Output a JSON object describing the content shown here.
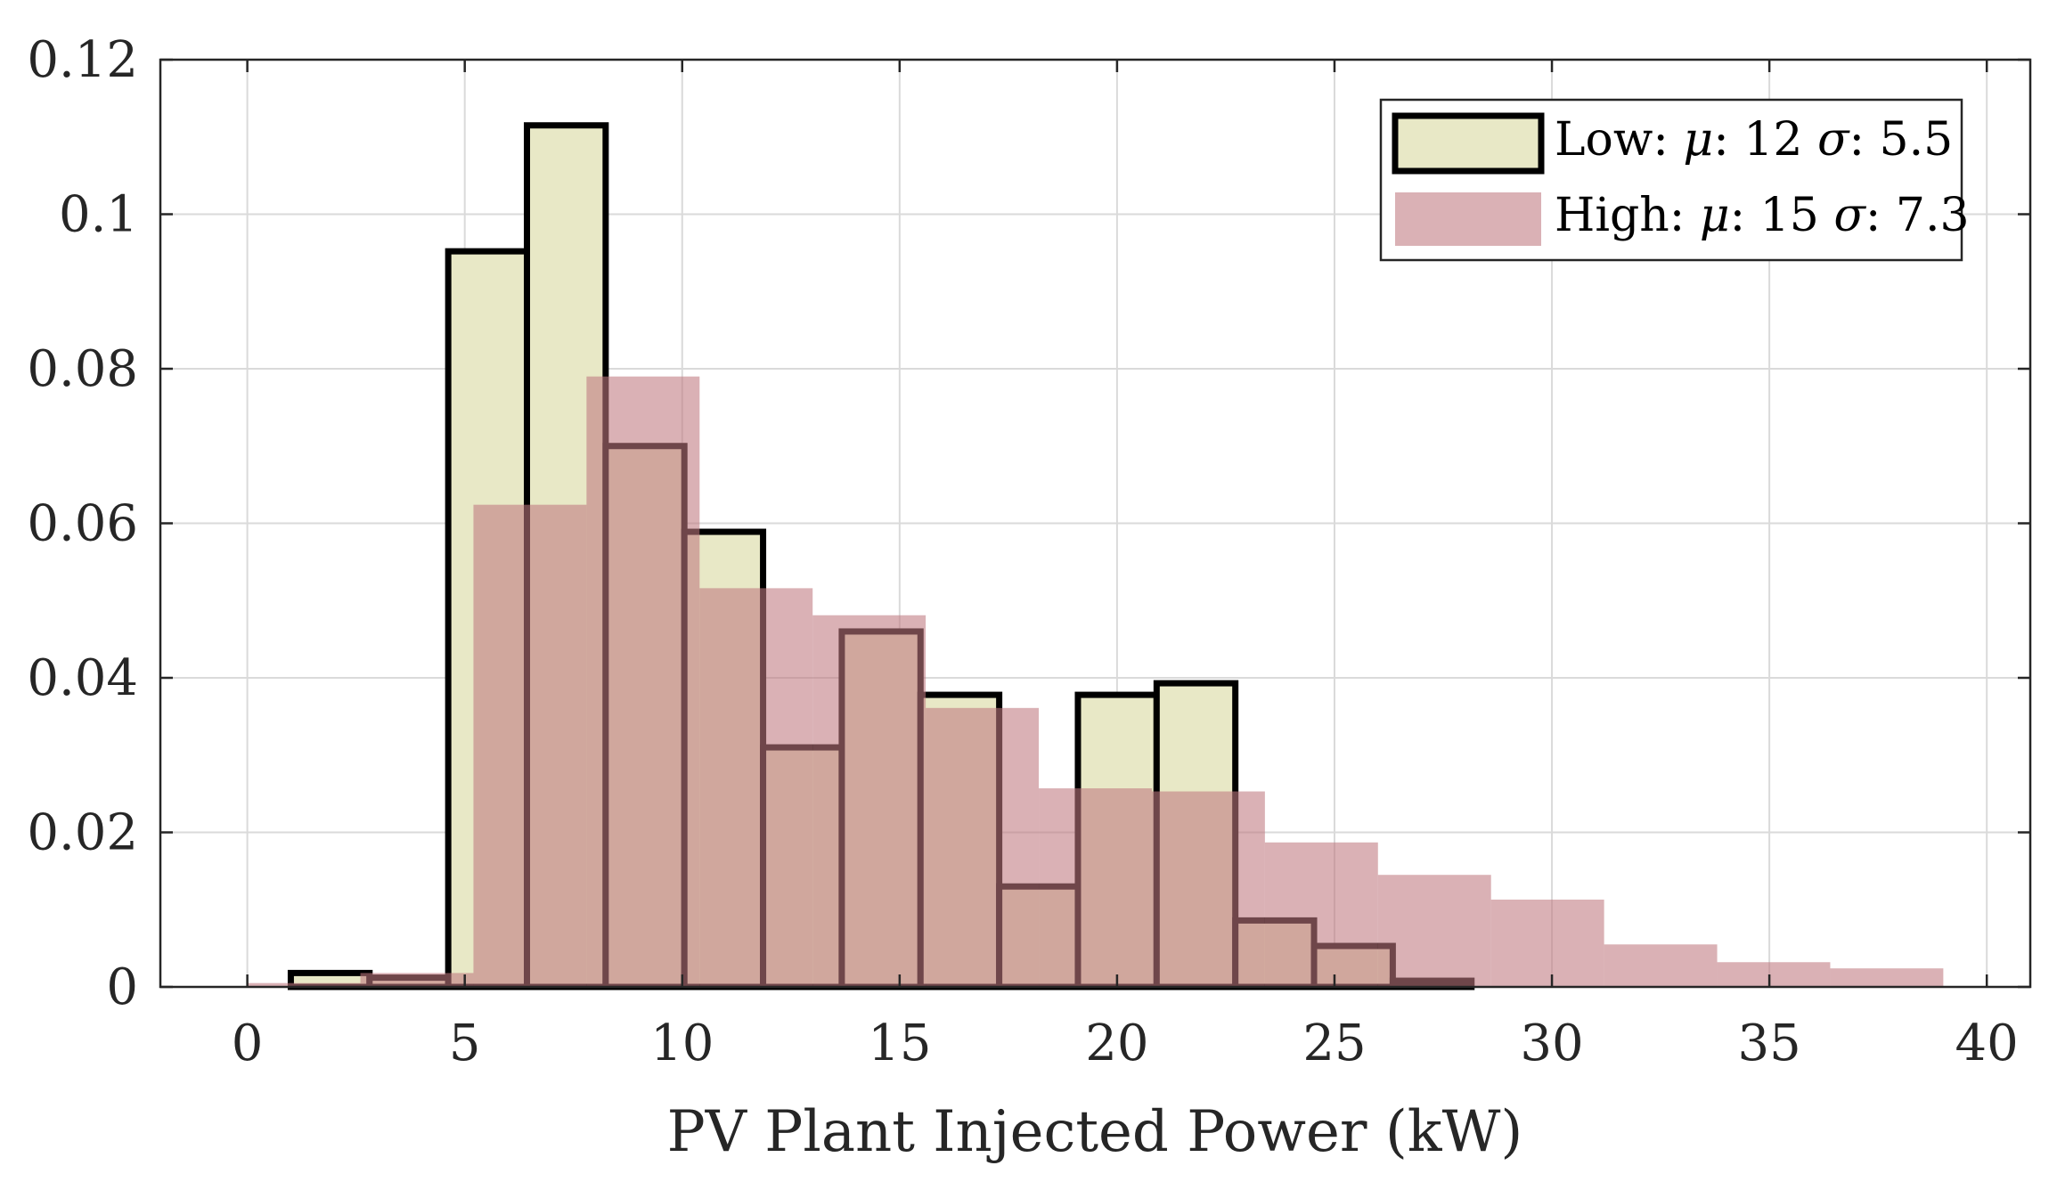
{
  "chart_data": {
    "type": "histogram",
    "title": "",
    "xlabel": "PV Plant Injected Power (kW)",
    "ylabel": "",
    "xlim": [
      -2,
      41
    ],
    "ylim": [
      0,
      0.12
    ],
    "xticks": [
      0,
      5,
      10,
      15,
      20,
      25,
      30,
      35,
      40
    ],
    "xtick_labels": [
      "0",
      "5",
      "10",
      "15",
      "20",
      "25",
      "30",
      "35",
      "40"
    ],
    "yticks": [
      0,
      0.02,
      0.04,
      0.06,
      0.08,
      0.1,
      0.12
    ],
    "ytick_labels": [
      "0",
      "0.02",
      "0.04",
      "0.06",
      "0.08",
      "0.1",
      "0.12"
    ],
    "grid": true,
    "legend_position": "top-right",
    "series": [
      {
        "name": "Low",
        "label_prefix": "Low: ",
        "mu_symbol": "μ",
        "mu_value": ": 12 ",
        "sigma_symbol": "σ",
        "sigma_value": ": 5.5",
        "fill_color": "#e8e8c6",
        "edge_color": "#000000",
        "bin_edges": [
          1.0,
          2.81,
          4.62,
          6.43,
          8.24,
          10.05,
          11.86,
          13.67,
          15.48,
          17.29,
          19.1,
          20.91,
          22.72,
          24.53,
          26.34,
          28.15
        ],
        "values": [
          0.0018,
          0.0012,
          0.0952,
          0.1115,
          0.07,
          0.0589,
          0.031,
          0.046,
          0.0378,
          0.013,
          0.0378,
          0.0393,
          0.0086,
          0.0053,
          0.0008
        ]
      },
      {
        "name": "High",
        "label_prefix": "High: ",
        "mu_symbol": "μ",
        "mu_value": ": 15 ",
        "sigma_symbol": "σ",
        "sigma_value": ": 7.3",
        "fill_color": "#c0787f",
        "fill_opacity": 0.58,
        "bin_edges": [
          0.0,
          2.6,
          5.2,
          7.8,
          10.4,
          13.0,
          15.6,
          18.2,
          20.8,
          23.4,
          26.0,
          28.6,
          31.2,
          33.8,
          36.4,
          39.0
        ],
        "values": [
          0.0005,
          0.0018,
          0.0624,
          0.079,
          0.0516,
          0.0481,
          0.0361,
          0.0257,
          0.0253,
          0.0187,
          0.0145,
          0.0113,
          0.0055,
          0.0032,
          0.0024
        ]
      }
    ]
  }
}
